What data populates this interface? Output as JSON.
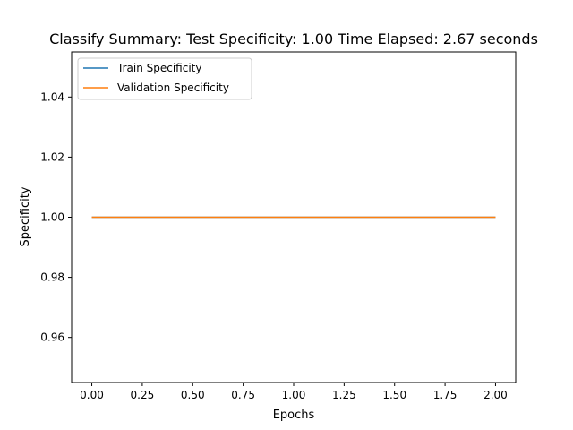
{
  "chart_data": {
    "type": "line",
    "title": "Classify Summary: Test Specificity: 1.00 Time Elapsed: 2.67 seconds",
    "xlabel": "Epochs",
    "ylabel": "Specificity",
    "xlim": [
      -0.1,
      2.1
    ],
    "ylim": [
      0.945,
      1.055
    ],
    "xticks": [
      0.0,
      0.25,
      0.5,
      0.75,
      1.0,
      1.25,
      1.5,
      1.75,
      2.0
    ],
    "xtick_labels": [
      "0.00",
      "0.25",
      "0.50",
      "0.75",
      "1.00",
      "1.25",
      "1.50",
      "1.75",
      "2.00"
    ],
    "yticks": [
      0.96,
      0.98,
      1.0,
      1.02,
      1.04
    ],
    "ytick_labels": [
      "0.96",
      "0.98",
      "1.00",
      "1.02",
      "1.04"
    ],
    "grid": false,
    "legend_position": "upper-left",
    "series": [
      {
        "name": "Train Specificity",
        "color": "#1f77b4",
        "x": [
          0,
          1,
          2
        ],
        "y": [
          1.0,
          1.0,
          1.0
        ]
      },
      {
        "name": "Validation Specificity",
        "color": "#ff7f0e",
        "x": [
          0,
          1,
          2
        ],
        "y": [
          1.0,
          1.0,
          1.0
        ]
      }
    ]
  }
}
